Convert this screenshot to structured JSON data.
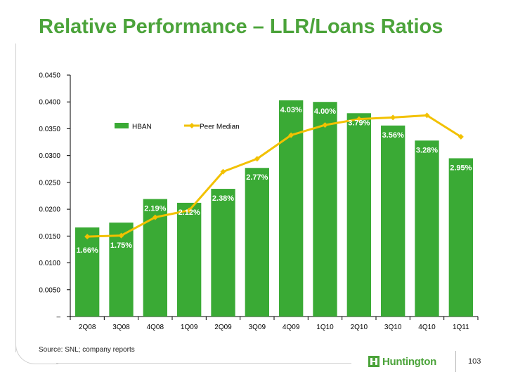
{
  "slide": {
    "title": "Relative Performance – LLR/Loans Ratios",
    "source": "Source: SNL; company reports",
    "logo_text": "Huntington",
    "page_number": "103"
  },
  "colors": {
    "title": "#4ba33a",
    "bar": "#3aaa35",
    "line": "#f2c100"
  },
  "chart_data": {
    "type": "bar",
    "categories": [
      "2Q08",
      "3Q08",
      "4Q08",
      "1Q09",
      "2Q09",
      "3Q09",
      "4Q09",
      "1Q10",
      "2Q10",
      "3Q10",
      "4Q10",
      "1Q11"
    ],
    "series": [
      {
        "name": "HBAN",
        "type": "bar",
        "values": [
          0.0166,
          0.0175,
          0.0219,
          0.0212,
          0.0238,
          0.0277,
          0.0403,
          0.04,
          0.0379,
          0.0356,
          0.0328,
          0.0295
        ],
        "labels": [
          "1.66%",
          "1.75%",
          "2.19%",
          "2.12%",
          "2.38%",
          "2.77%",
          "4.03%",
          "4.00%",
          "3.79%",
          "3.56%",
          "3.28%",
          "2.95%"
        ]
      },
      {
        "name": "Peer Median",
        "type": "line",
        "values": [
          0.0149,
          0.0151,
          0.0185,
          0.0198,
          0.027,
          0.0294,
          0.0338,
          0.0357,
          0.0368,
          0.0371,
          0.0375,
          0.0335
        ]
      }
    ],
    "ylim": [
      0,
      0.045
    ],
    "yticks": [
      0,
      0.005,
      0.01,
      0.015,
      0.02,
      0.025,
      0.03,
      0.035,
      0.04,
      0.045
    ],
    "ytick_labels": [
      "–",
      "0.0050",
      "0.0100",
      "0.0150",
      "0.0200",
      "0.0250",
      "0.0300",
      "0.0350",
      "0.0400",
      "0.0450"
    ],
    "legend_position": "top-left",
    "grid": false,
    "title": "",
    "xlabel": "",
    "ylabel": ""
  }
}
